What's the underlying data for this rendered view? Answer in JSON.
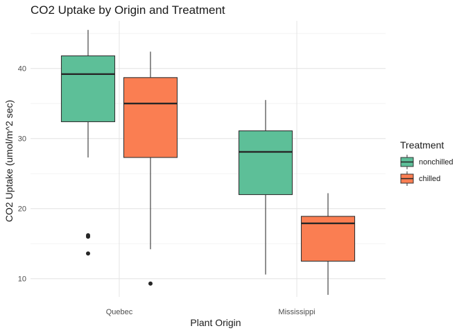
{
  "chart_data": {
    "type": "boxplot",
    "title": "CO2 Uptake by Origin and Treatment",
    "xlabel": "Plant Origin",
    "ylabel": "CO2 Uptake (umol/m^2 sec)",
    "categories": [
      "Quebec",
      "Mississippi"
    ],
    "ylim": [
      7.4,
      46.8
    ],
    "yticks": [
      10,
      20,
      30,
      40
    ],
    "grid": true,
    "legend": {
      "title": "Treatment",
      "position": "right"
    },
    "series": [
      {
        "name": "nonchilled",
        "color": "#5dbf98",
        "boxes": [
          {
            "category": "Quebec",
            "min": 27.3,
            "q1": 32.4,
            "median": 39.2,
            "q3": 41.8,
            "max": 45.5,
            "outliers": [
              16.0,
              16.2,
              13.6
            ]
          },
          {
            "category": "Mississippi",
            "min": 10.6,
            "q1": 22.0,
            "median": 28.1,
            "q3": 31.1,
            "max": 35.5,
            "outliers": []
          }
        ]
      },
      {
        "name": "chilled",
        "color": "#fa7e52",
        "boxes": [
          {
            "category": "Quebec",
            "min": 14.2,
            "q1": 27.3,
            "median": 35.0,
            "q3": 38.7,
            "max": 42.4,
            "outliers": [
              9.3
            ]
          },
          {
            "category": "Mississippi",
            "min": 7.7,
            "q1": 12.5,
            "median": 17.9,
            "q3": 18.9,
            "max": 22.2,
            "outliers": []
          }
        ]
      }
    ]
  }
}
